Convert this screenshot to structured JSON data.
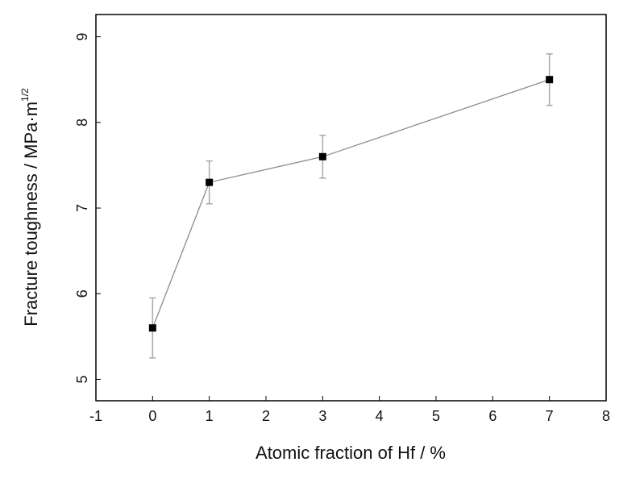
{
  "chart_data": {
    "type": "line",
    "xlabel": "Atomic fraction of Hf / %",
    "ylabel": "Fracture toughness / MPa·m",
    "ylabel_superscript": "1/2",
    "x": [
      0,
      1,
      3,
      7
    ],
    "series": [
      {
        "values": [
          5.6,
          7.3,
          7.6,
          8.5
        ],
        "errors": [
          0.35,
          0.25,
          0.25,
          0.3
        ],
        "color": "#8c8c8c",
        "marker_color": "#000000",
        "error_color": "#a8a8a8"
      }
    ],
    "xlim": [
      -1,
      8
    ],
    "xticks": [
      -1,
      0,
      1,
      2,
      3,
      4,
      5,
      6,
      7,
      8
    ],
    "ylim": [
      4.75,
      9.26
    ],
    "yticks": [
      5,
      6,
      7,
      8,
      9
    ]
  }
}
